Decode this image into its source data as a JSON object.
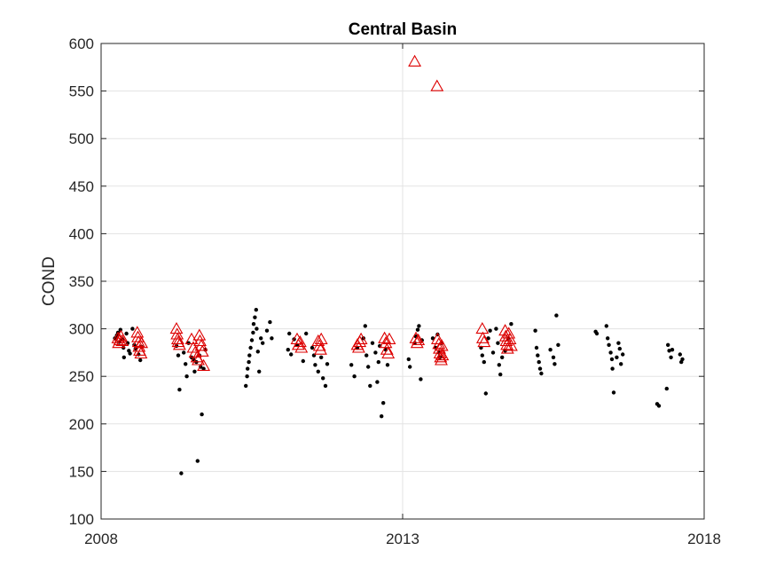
{
  "chart_data": {
    "type": "scatter",
    "title": "Central Basin",
    "xlabel": "",
    "ylabel": "COND",
    "xlim": [
      2008,
      2018
    ],
    "ylim": [
      100,
      600
    ],
    "xticks": [
      2008,
      2013,
      2018
    ],
    "xtick_labels": [
      "2008",
      "2013",
      "2018"
    ],
    "yticks": [
      100,
      150,
      200,
      250,
      300,
      350,
      400,
      450,
      500,
      550,
      600
    ],
    "ytick_labels": [
      "100",
      "150",
      "200",
      "250",
      "300",
      "350",
      "400",
      "450",
      "500",
      "550",
      "600"
    ],
    "grid": true,
    "legend": "none",
    "colors": {
      "dots": "#000000",
      "triangles": "#dd0000",
      "axes": "#262626",
      "grid": "#e3e3e3"
    },
    "series": [
      {
        "marker": "dot",
        "color": "#000000",
        "points": [
          [
            2008.23,
            290
          ],
          [
            2008.26,
            293
          ],
          [
            2008.28,
            296
          ],
          [
            2008.3,
            286
          ],
          [
            2008.32,
            299
          ],
          [
            2008.35,
            289
          ],
          [
            2008.37,
            280
          ],
          [
            2008.38,
            270
          ],
          [
            2008.42,
            295
          ],
          [
            2008.44,
            285
          ],
          [
            2008.46,
            277
          ],
          [
            2008.48,
            274
          ],
          [
            2008.52,
            300
          ],
          [
            2008.55,
            283
          ],
          [
            2008.57,
            279
          ],
          [
            2008.62,
            273
          ],
          [
            2008.65,
            267
          ],
          [
            2008.67,
            281
          ],
          [
            2009.25,
            282
          ],
          [
            2009.28,
            272
          ],
          [
            2009.3,
            236
          ],
          [
            2009.33,
            148
          ],
          [
            2009.37,
            275
          ],
          [
            2009.4,
            263
          ],
          [
            2009.42,
            250
          ],
          [
            2009.45,
            285
          ],
          [
            2009.5,
            270
          ],
          [
            2009.53,
            268
          ],
          [
            2009.55,
            255
          ],
          [
            2009.58,
            265
          ],
          [
            2009.6,
            161
          ],
          [
            2009.63,
            272
          ],
          [
            2009.65,
            260
          ],
          [
            2009.67,
            210
          ],
          [
            2009.7,
            258
          ],
          [
            2009.73,
            278
          ],
          [
            2010.4,
            240
          ],
          [
            2010.42,
            250
          ],
          [
            2010.43,
            258
          ],
          [
            2010.45,
            265
          ],
          [
            2010.46,
            272
          ],
          [
            2010.48,
            280
          ],
          [
            2010.5,
            288
          ],
          [
            2010.52,
            296
          ],
          [
            2010.53,
            305
          ],
          [
            2010.55,
            312
          ],
          [
            2010.57,
            320
          ],
          [
            2010.58,
            300
          ],
          [
            2010.6,
            276
          ],
          [
            2010.62,
            255
          ],
          [
            2010.65,
            290
          ],
          [
            2010.68,
            285
          ],
          [
            2010.75,
            298
          ],
          [
            2010.8,
            307
          ],
          [
            2010.83,
            290
          ],
          [
            2011.1,
            278
          ],
          [
            2011.12,
            295
          ],
          [
            2011.15,
            273
          ],
          [
            2011.2,
            289
          ],
          [
            2011.25,
            283
          ],
          [
            2011.35,
            266
          ],
          [
            2011.4,
            295
          ],
          [
            2011.5,
            280
          ],
          [
            2011.53,
            272
          ],
          [
            2011.55,
            262
          ],
          [
            2011.6,
            255
          ],
          [
            2011.65,
            270
          ],
          [
            2011.68,
            248
          ],
          [
            2011.72,
            240
          ],
          [
            2011.75,
            263
          ],
          [
            2012.15,
            262
          ],
          [
            2012.2,
            250
          ],
          [
            2012.25,
            280
          ],
          [
            2012.35,
            290
          ],
          [
            2012.38,
            303
          ],
          [
            2012.4,
            272
          ],
          [
            2012.43,
            260
          ],
          [
            2012.46,
            240
          ],
          [
            2012.5,
            285
          ],
          [
            2012.55,
            275
          ],
          [
            2012.58,
            244
          ],
          [
            2012.6,
            265
          ],
          [
            2012.62,
            282
          ],
          [
            2012.65,
            208
          ],
          [
            2012.68,
            222
          ],
          [
            2012.72,
            278
          ],
          [
            2012.75,
            262
          ],
          [
            2013.1,
            268
          ],
          [
            2013.12,
            260
          ],
          [
            2013.2,
            285
          ],
          [
            2013.22,
            292
          ],
          [
            2013.25,
            299
          ],
          [
            2013.27,
            303
          ],
          [
            2013.3,
            247
          ],
          [
            2013.32,
            288
          ],
          [
            2013.5,
            290
          ],
          [
            2013.55,
            280
          ],
          [
            2013.58,
            294
          ],
          [
            2013.6,
            275
          ],
          [
            2013.62,
            270
          ],
          [
            2013.65,
            285
          ],
          [
            2014.3,
            280
          ],
          [
            2014.32,
            272
          ],
          [
            2014.35,
            265
          ],
          [
            2014.38,
            232
          ],
          [
            2014.42,
            290
          ],
          [
            2014.45,
            298
          ],
          [
            2014.5,
            275
          ],
          [
            2014.55,
            300
          ],
          [
            2014.58,
            285
          ],
          [
            2014.6,
            262
          ],
          [
            2014.62,
            252
          ],
          [
            2014.65,
            270
          ],
          [
            2014.7,
            277
          ],
          [
            2014.75,
            290
          ],
          [
            2014.8,
            305
          ],
          [
            2015.2,
            298
          ],
          [
            2015.22,
            280
          ],
          [
            2015.24,
            272
          ],
          [
            2015.26,
            265
          ],
          [
            2015.28,
            258
          ],
          [
            2015.3,
            253
          ],
          [
            2015.45,
            278
          ],
          [
            2015.5,
            270
          ],
          [
            2015.52,
            263
          ],
          [
            2015.55,
            314
          ],
          [
            2015.58,
            283
          ],
          [
            2016.2,
            297
          ],
          [
            2016.22,
            295
          ],
          [
            2016.38,
            303
          ],
          [
            2016.4,
            290
          ],
          [
            2016.42,
            283
          ],
          [
            2016.45,
            275
          ],
          [
            2016.47,
            268
          ],
          [
            2016.48,
            258
          ],
          [
            2016.5,
            233
          ],
          [
            2016.55,
            270
          ],
          [
            2016.58,
            285
          ],
          [
            2016.6,
            279
          ],
          [
            2016.62,
            263
          ],
          [
            2016.65,
            273
          ],
          [
            2017.22,
            221
          ],
          [
            2017.25,
            219
          ],
          [
            2017.38,
            237
          ],
          [
            2017.4,
            283
          ],
          [
            2017.42,
            277
          ],
          [
            2017.45,
            270
          ],
          [
            2017.47,
            278
          ],
          [
            2017.6,
            273
          ],
          [
            2017.62,
            265
          ],
          [
            2017.64,
            268
          ]
        ]
      },
      {
        "marker": "triangle-open",
        "color": "#dd0000",
        "points": [
          [
            2008.28,
            290
          ],
          [
            2008.29,
            285
          ],
          [
            2008.31,
            288
          ],
          [
            2008.33,
            292
          ],
          [
            2008.35,
            287
          ],
          [
            2008.6,
            296
          ],
          [
            2008.61,
            291
          ],
          [
            2008.62,
            286
          ],
          [
            2008.63,
            281
          ],
          [
            2008.64,
            277
          ],
          [
            2008.66,
            274
          ],
          [
            2008.67,
            285
          ],
          [
            2009.25,
            300
          ],
          [
            2009.26,
            294
          ],
          [
            2009.27,
            289
          ],
          [
            2009.28,
            286
          ],
          [
            2009.3,
            283
          ],
          [
            2009.5,
            289
          ],
          [
            2009.53,
            280
          ],
          [
            2009.56,
            275
          ],
          [
            2009.59,
            270
          ],
          [
            2009.61,
            267
          ],
          [
            2009.63,
            293
          ],
          [
            2009.64,
            287
          ],
          [
            2009.66,
            282
          ],
          [
            2009.68,
            276
          ],
          [
            2009.7,
            261
          ],
          [
            2011.25,
            289
          ],
          [
            2011.27,
            283
          ],
          [
            2011.3,
            286
          ],
          [
            2011.32,
            280
          ],
          [
            2011.6,
            287
          ],
          [
            2011.62,
            282
          ],
          [
            2011.64,
            278
          ],
          [
            2011.65,
            289
          ],
          [
            2012.25,
            283
          ],
          [
            2012.27,
            280
          ],
          [
            2012.29,
            286
          ],
          [
            2012.31,
            289
          ],
          [
            2012.7,
            290
          ],
          [
            2012.72,
            285
          ],
          [
            2012.74,
            278
          ],
          [
            2012.76,
            274
          ],
          [
            2012.78,
            289
          ],
          [
            2013.22,
            290
          ],
          [
            2013.24,
            285
          ],
          [
            2013.26,
            288
          ],
          [
            2013.2,
            581
          ],
          [
            2013.57,
            555
          ],
          [
            2013.58,
            289
          ],
          [
            2013.6,
            284
          ],
          [
            2013.61,
            279
          ],
          [
            2013.62,
            274
          ],
          [
            2013.63,
            270
          ],
          [
            2013.64,
            267
          ],
          [
            2013.65,
            282
          ],
          [
            2013.66,
            272
          ],
          [
            2014.32,
            300
          ],
          [
            2014.33,
            290
          ],
          [
            2014.35,
            286
          ],
          [
            2014.7,
            298
          ],
          [
            2014.71,
            292
          ],
          [
            2014.72,
            287
          ],
          [
            2014.73,
            283
          ],
          [
            2014.74,
            279
          ],
          [
            2014.76,
            295
          ],
          [
            2014.78,
            289
          ],
          [
            2014.8,
            282
          ]
        ]
      }
    ]
  }
}
